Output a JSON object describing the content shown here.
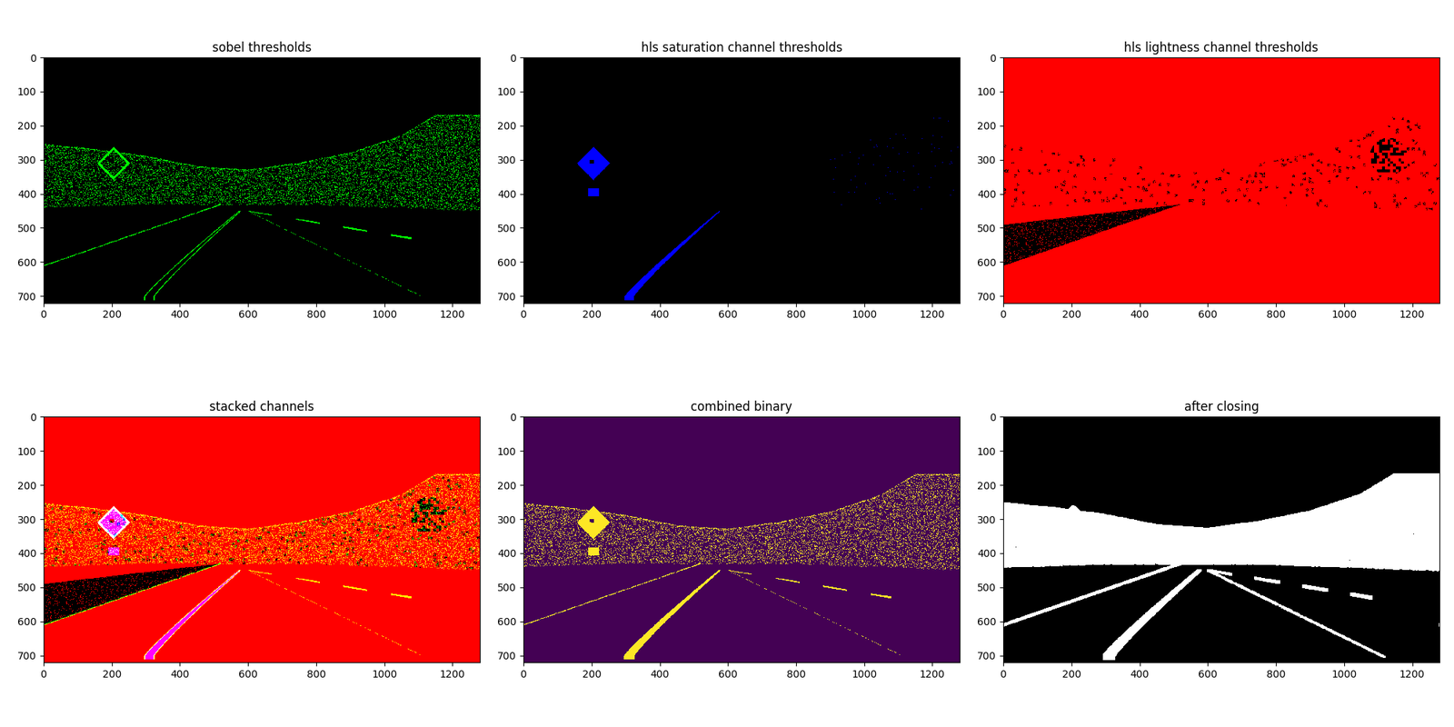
{
  "chart_data": [
    {
      "type": "image",
      "title": "sobel thresholds",
      "colors": [
        "#000000",
        "#00ff00"
      ],
      "xlim": [
        0,
        1280
      ],
      "ylim": [
        720,
        0
      ],
      "xticks": [
        0,
        200,
        400,
        600,
        800,
        1000,
        1200
      ],
      "yticks": [
        0,
        100,
        200,
        300,
        400,
        500,
        600,
        700
      ]
    },
    {
      "type": "image",
      "title": "hls saturation channel thresholds",
      "colors": [
        "#000000",
        "#0000ff"
      ],
      "xlim": [
        0,
        1280
      ],
      "ylim": [
        720,
        0
      ],
      "xticks": [
        0,
        200,
        400,
        600,
        800,
        1000,
        1200
      ],
      "yticks": [
        0,
        100,
        200,
        300,
        400,
        500,
        600,
        700
      ]
    },
    {
      "type": "image",
      "title": "hls lightness channel thresholds",
      "colors": [
        "#000000",
        "#ff0000"
      ],
      "xlim": [
        0,
        1280
      ],
      "ylim": [
        720,
        0
      ],
      "xticks": [
        0,
        200,
        400,
        600,
        800,
        1000,
        1200
      ],
      "yticks": [
        0,
        100,
        200,
        300,
        400,
        500,
        600,
        700
      ]
    },
    {
      "type": "stacked",
      "title": "stacked channels",
      "colors": [
        "#000000",
        "#ff0000",
        "#00ff00",
        "#0000ff"
      ],
      "xlim": [
        0,
        1280
      ],
      "ylim": [
        720,
        0
      ],
      "xticks": [
        0,
        200,
        400,
        600,
        800,
        1000,
        1200
      ],
      "yticks": [
        0,
        100,
        200,
        300,
        400,
        500,
        600,
        700
      ]
    },
    {
      "type": "image",
      "title": "combined binary",
      "colors": [
        "#440154",
        "#fde725"
      ],
      "xlim": [
        0,
        1280
      ],
      "ylim": [
        720,
        0
      ],
      "xticks": [
        0,
        200,
        400,
        600,
        800,
        1000,
        1200
      ],
      "yticks": [
        0,
        100,
        200,
        300,
        400,
        500,
        600,
        700
      ]
    },
    {
      "type": "image",
      "title": "after closing",
      "colors": [
        "#000000",
        "#ffffff"
      ],
      "xlim": [
        0,
        1280
      ],
      "ylim": [
        720,
        0
      ],
      "xticks": [
        0,
        200,
        400,
        600,
        800,
        1000,
        1200
      ],
      "yticks": [
        0,
        100,
        200,
        300,
        400,
        500,
        600,
        700
      ]
    }
  ]
}
